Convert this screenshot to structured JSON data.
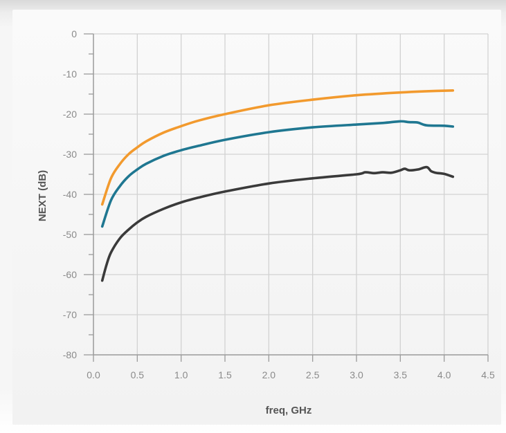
{
  "chart_data": {
    "type": "line",
    "title": "",
    "xlabel": "freq, GHz",
    "ylabel": "NEXT (dB)",
    "xlim": [
      0.0,
      4.5
    ],
    "ylim": [
      -80,
      0
    ],
    "x_ticks": [
      "0.0",
      "0.5",
      "1.0",
      "1.5",
      "2.0",
      "2.5",
      "3.0",
      "3.5",
      "4.0",
      "4.5"
    ],
    "y_ticks": [
      "0",
      "-10",
      "-20",
      "-30",
      "-40",
      "-50",
      "-60",
      "-70",
      "-80"
    ],
    "grid": true,
    "legend": "none",
    "series": [
      {
        "color": "#f29a2e",
        "x": [
          0.1,
          0.2,
          0.3,
          0.4,
          0.5,
          0.6,
          0.8,
          1.0,
          1.2,
          1.5,
          2.0,
          2.5,
          3.0,
          3.5,
          3.8,
          4.1
        ],
        "y": [
          -42.5,
          -36.0,
          -32.5,
          -30.0,
          -28.3,
          -26.8,
          -24.6,
          -23.0,
          -21.6,
          -20.0,
          -17.8,
          -16.4,
          -15.3,
          -14.6,
          -14.3,
          -14.1
        ]
      },
      {
        "color": "#1f7791",
        "x": [
          0.1,
          0.2,
          0.3,
          0.4,
          0.5,
          0.6,
          0.8,
          1.0,
          1.2,
          1.5,
          2.0,
          2.5,
          3.0,
          3.3,
          3.5,
          3.6,
          3.7,
          3.8,
          4.0,
          4.1
        ],
        "y": [
          -48.0,
          -41.5,
          -38.0,
          -35.5,
          -33.8,
          -32.4,
          -30.4,
          -29.0,
          -27.9,
          -26.4,
          -24.5,
          -23.3,
          -22.6,
          -22.2,
          -21.8,
          -22.0,
          -22.1,
          -22.8,
          -22.9,
          -23.1
        ]
      },
      {
        "color": "#3a3a3a",
        "x": [
          0.1,
          0.15,
          0.2,
          0.3,
          0.4,
          0.5,
          0.6,
          0.8,
          1.0,
          1.2,
          1.5,
          2.0,
          2.5,
          3.0,
          3.1,
          3.2,
          3.3,
          3.4,
          3.5,
          3.55,
          3.6,
          3.7,
          3.8,
          3.85,
          3.9,
          4.0,
          4.1
        ],
        "y": [
          -61.5,
          -57.5,
          -54.5,
          -51.0,
          -48.8,
          -47.0,
          -45.6,
          -43.6,
          -42.0,
          -40.8,
          -39.3,
          -37.3,
          -36.0,
          -35.0,
          -34.5,
          -34.7,
          -34.5,
          -34.6,
          -34.0,
          -33.6,
          -34.0,
          -33.8,
          -33.2,
          -34.2,
          -34.6,
          -34.9,
          -35.6
        ]
      }
    ]
  }
}
